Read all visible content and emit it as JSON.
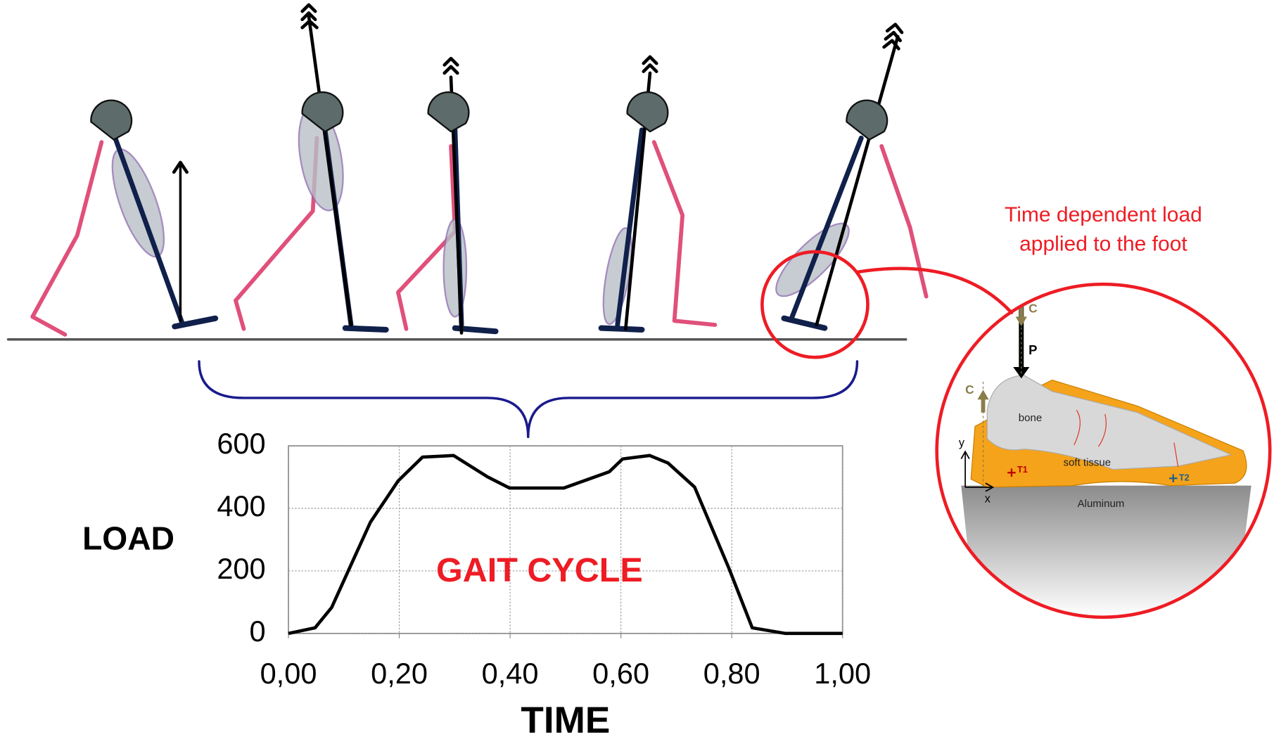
{
  "chart_data": {
    "type": "line",
    "xlabel": "TIME",
    "ylabel": "LOAD",
    "annotation": "GAIT CYCLE",
    "x": [
      0,
      0.048,
      0.078,
      0.11,
      0.148,
      0.198,
      0.242,
      0.298,
      0.359,
      0.399,
      0.497,
      0.579,
      0.603,
      0.652,
      0.685,
      0.733,
      0.795,
      0.837,
      0.897,
      1.0
    ],
    "values": [
      0,
      18,
      83,
      208,
      356,
      488,
      564,
      569,
      501,
      465,
      465,
      517,
      558,
      569,
      545,
      468,
      208,
      18,
      0,
      0
    ],
    "color": "#000000",
    "xlim": [
      0,
      1
    ],
    "xticks": [
      {
        "value": 0,
        "label": "0,00"
      },
      {
        "value": 0.2,
        "label": "0,20"
      },
      {
        "value": 0.4,
        "label": "0,40"
      },
      {
        "value": 0.6,
        "label": "0,60"
      },
      {
        "value": 0.8,
        "label": "0,80"
      },
      {
        "value": 1,
        "label": "1,00"
      }
    ],
    "ylim": [
      0,
      600
    ],
    "yticks": [
      0,
      200,
      400,
      600
    ],
    "grid": true
  },
  "foot_diagram": {
    "caption": [
      "Time dependent load",
      "applied to the foot"
    ],
    "load_labels": [
      "C",
      "P",
      "C"
    ],
    "region_labels": [
      "bone",
      "soft tissue",
      "Aluminum"
    ],
    "point_labels": [
      "T1",
      "T2"
    ],
    "axis_labels": [
      "y",
      "x"
    ]
  }
}
